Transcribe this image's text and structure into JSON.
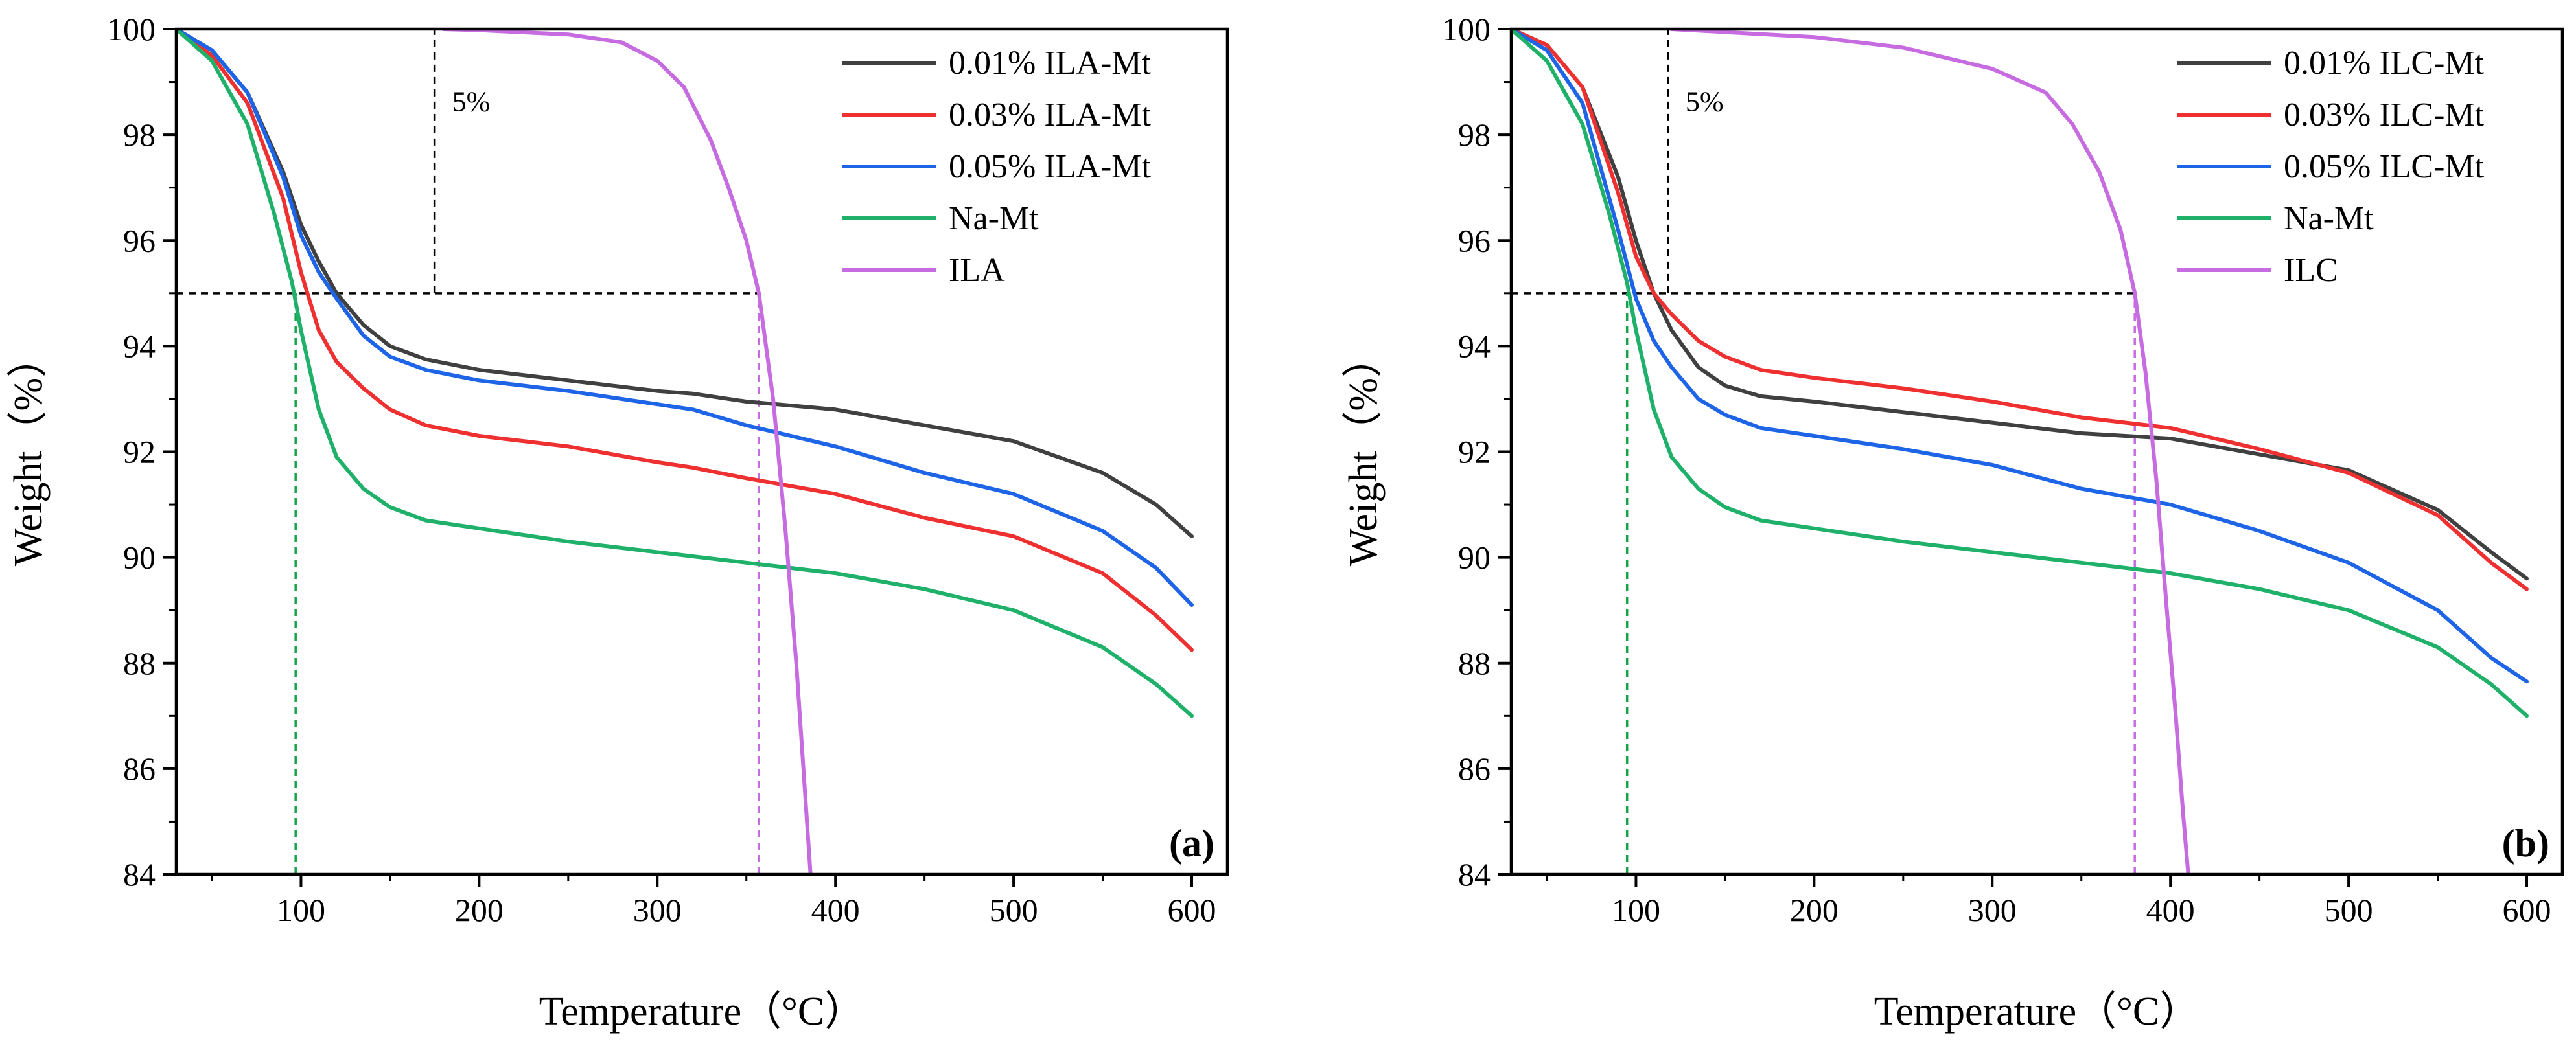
{
  "chart_data": [
    {
      "type": "line",
      "panel_label": "(a)",
      "xlabel": "Temperature（°C）",
      "ylabel": "Weight（%）",
      "xlim": [
        30,
        620
      ],
      "ylim": [
        84,
        100
      ],
      "xticks": [
        100,
        200,
        300,
        400,
        500,
        600
      ],
      "yticks": [
        84,
        86,
        88,
        90,
        92,
        94,
        96,
        98,
        100
      ],
      "legend_position": "top-right",
      "annotation": "5%",
      "reference_lines": [
        {
          "kind": "h",
          "y": 95,
          "x_from": 30,
          "x_to": 357,
          "color": "#000000"
        },
        {
          "kind": "v",
          "x": 175,
          "y_from": 95,
          "y_to": 100,
          "color": "#000000"
        },
        {
          "kind": "v",
          "x": 97,
          "y_from": 84,
          "y_to": 95,
          "color": "#16a34a"
        },
        {
          "kind": "v",
          "x": 357,
          "y_from": 84,
          "y_to": 95,
          "color": "#c66be0"
        }
      ],
      "series": [
        {
          "name": "0.01% ILA-Mt",
          "color": "#404040",
          "x": [
            30,
            50,
            70,
            90,
            100,
            110,
            120,
            135,
            150,
            170,
            200,
            250,
            300,
            320,
            350,
            400,
            450,
            500,
            550,
            580,
            600
          ],
          "y": [
            100,
            99.6,
            98.8,
            97.3,
            96.3,
            95.6,
            95.0,
            94.4,
            94.0,
            93.75,
            93.55,
            93.35,
            93.15,
            93.1,
            92.95,
            92.8,
            92.5,
            92.2,
            91.6,
            91.0,
            90.4
          ]
        },
        {
          "name": "0.03% ILA-Mt",
          "color": "#ee3030",
          "x": [
            30,
            50,
            70,
            90,
            100,
            110,
            120,
            135,
            150,
            170,
            200,
            250,
            300,
            320,
            350,
            400,
            450,
            500,
            550,
            580,
            600
          ],
          "y": [
            100,
            99.5,
            98.6,
            96.8,
            95.4,
            94.3,
            93.7,
            93.2,
            92.8,
            92.5,
            92.3,
            92.1,
            91.8,
            91.7,
            91.5,
            91.2,
            90.75,
            90.4,
            89.7,
            88.9,
            88.25
          ]
        },
        {
          "name": "0.05% ILA-Mt",
          "color": "#1e64e6",
          "x": [
            30,
            50,
            70,
            90,
            100,
            110,
            120,
            135,
            150,
            170,
            200,
            250,
            300,
            320,
            350,
            400,
            450,
            500,
            550,
            580,
            600
          ],
          "y": [
            100,
            99.6,
            98.8,
            97.2,
            96.1,
            95.4,
            94.9,
            94.2,
            93.8,
            93.55,
            93.35,
            93.15,
            92.9,
            92.8,
            92.5,
            92.1,
            91.6,
            91.2,
            90.5,
            89.8,
            89.1
          ]
        },
        {
          "name": "Na-Mt",
          "color": "#1fb06a",
          "x": [
            30,
            50,
            70,
            85,
            95,
            100,
            110,
            120,
            135,
            150,
            170,
            200,
            250,
            300,
            350,
            400,
            450,
            500,
            550,
            580,
            600
          ],
          "y": [
            100,
            99.4,
            98.2,
            96.5,
            95.2,
            94.3,
            92.8,
            91.9,
            91.3,
            90.95,
            90.7,
            90.55,
            90.3,
            90.1,
            89.9,
            89.7,
            89.4,
            89.0,
            88.3,
            87.6,
            87.0
          ]
        },
        {
          "name": "ILA",
          "color": "#c66be0",
          "x": [
            180,
            200,
            250,
            280,
            300,
            315,
            330,
            340,
            350,
            357,
            365,
            372,
            378,
            383,
            386
          ],
          "y": [
            100,
            99.98,
            99.9,
            99.75,
            99.4,
            98.9,
            97.9,
            97.0,
            96.0,
            95.0,
            93.0,
            90.5,
            88.0,
            85.5,
            84
          ]
        }
      ]
    },
    {
      "type": "line",
      "panel_label": "(b)",
      "xlabel": "Temperature（°C）",
      "ylabel": "Weight（%）",
      "xlim": [
        30,
        620
      ],
      "ylim": [
        84,
        100
      ],
      "xticks": [
        100,
        200,
        300,
        400,
        500,
        600
      ],
      "yticks": [
        84,
        86,
        88,
        90,
        92,
        94,
        96,
        98,
        100
      ],
      "legend_position": "top-right",
      "annotation": "5%",
      "reference_lines": [
        {
          "kind": "h",
          "y": 95,
          "x_from": 30,
          "x_to": 380,
          "color": "#000000"
        },
        {
          "kind": "v",
          "x": 118,
          "y_from": 95,
          "y_to": 100,
          "color": "#000000"
        },
        {
          "kind": "v",
          "x": 95,
          "y_from": 84,
          "y_to": 95,
          "color": "#16a34a"
        },
        {
          "kind": "v",
          "x": 380,
          "y_from": 84,
          "y_to": 95,
          "color": "#c66be0"
        }
      ],
      "series": [
        {
          "name": "0.01% ILC-Mt",
          "color": "#404040",
          "x": [
            30,
            50,
            70,
            90,
            100,
            110,
            120,
            135,
            150,
            170,
            200,
            250,
            300,
            350,
            400,
            450,
            500,
            550,
            580,
            600
          ],
          "y": [
            100,
            99.7,
            98.9,
            97.2,
            96.0,
            95.0,
            94.3,
            93.6,
            93.25,
            93.05,
            92.95,
            92.75,
            92.55,
            92.35,
            92.25,
            91.95,
            91.65,
            90.9,
            90.1,
            89.6
          ]
        },
        {
          "name": "0.03% ILC-Mt",
          "color": "#ee3030",
          "x": [
            30,
            50,
            70,
            90,
            100,
            110,
            120,
            135,
            150,
            170,
            200,
            250,
            300,
            350,
            400,
            450,
            500,
            550,
            580,
            600
          ],
          "y": [
            100,
            99.7,
            98.9,
            96.9,
            95.7,
            95.0,
            94.6,
            94.1,
            93.8,
            93.55,
            93.4,
            93.2,
            92.95,
            92.65,
            92.45,
            92.05,
            91.6,
            90.8,
            89.9,
            89.4
          ]
        },
        {
          "name": "0.05% ILC-Mt",
          "color": "#1e64e6",
          "x": [
            30,
            50,
            70,
            90,
            100,
            110,
            120,
            135,
            150,
            170,
            200,
            250,
            300,
            350,
            400,
            450,
            500,
            550,
            580,
            600
          ],
          "y": [
            100,
            99.6,
            98.6,
            96.2,
            94.9,
            94.1,
            93.6,
            93.0,
            92.7,
            92.45,
            92.3,
            92.05,
            91.75,
            91.3,
            91.0,
            90.5,
            89.9,
            89.0,
            88.1,
            87.65
          ]
        },
        {
          "name": "Na-Mt",
          "color": "#1fb06a",
          "x": [
            30,
            50,
            70,
            85,
            95,
            100,
            110,
            120,
            135,
            150,
            170,
            200,
            250,
            300,
            350,
            400,
            450,
            500,
            550,
            580,
            600
          ],
          "y": [
            100,
            99.4,
            98.2,
            96.5,
            95.2,
            94.3,
            92.8,
            91.9,
            91.3,
            90.95,
            90.7,
            90.55,
            90.3,
            90.1,
            89.9,
            89.7,
            89.4,
            89.0,
            88.3,
            87.6,
            87.0
          ]
        },
        {
          "name": "ILC",
          "color": "#c66be0",
          "x": [
            120,
            200,
            250,
            300,
            330,
            345,
            360,
            372,
            380,
            386,
            392,
            398,
            403,
            407,
            410
          ],
          "y": [
            100,
            99.85,
            99.65,
            99.25,
            98.8,
            98.2,
            97.3,
            96.2,
            95.0,
            93.5,
            91.5,
            89.0,
            87.0,
            85.2,
            84
          ]
        }
      ]
    }
  ]
}
